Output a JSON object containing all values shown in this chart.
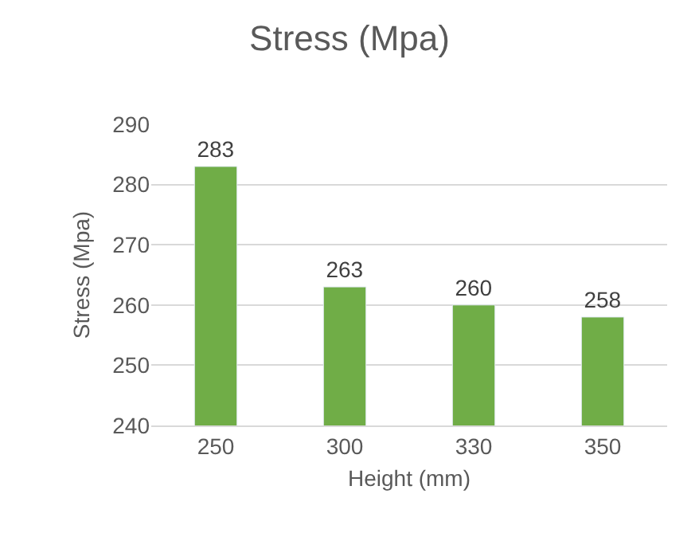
{
  "chart_data": {
    "type": "bar",
    "title": "Stress (Mpa)",
    "xlabel": "Height (mm)",
    "ylabel": "Stress (Mpa)",
    "categories": [
      "250",
      "300",
      "330",
      "350"
    ],
    "values": [
      283,
      263,
      260,
      258
    ],
    "color": "#70ad47",
    "ylim": [
      240,
      290
    ],
    "yticks": [
      240,
      250,
      260,
      270,
      280,
      290
    ],
    "grid": "y",
    "data_labels": true
  }
}
